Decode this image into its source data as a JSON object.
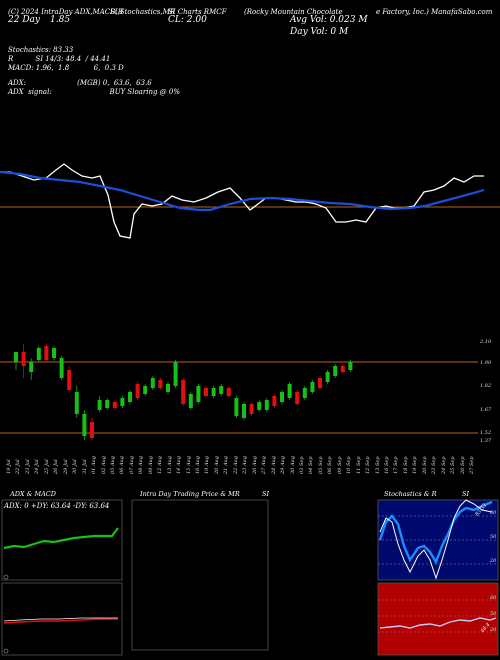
{
  "header": {
    "line1_left": "(C) 2024 IntraDay ADX,MACD,R",
    "line1_mid": "SI,Stochastics,MR",
    "line1_mid2": "SI Charts RMCF",
    "line1_right": "(Rocky Mountain Chocolate",
    "line1_right2": "e Factory, Inc.) ManafaSabo.com",
    "date_label": "22 Day",
    "close_prefix": "CL: 2.00",
    "avg_vol": "Avg Vol: 0.023 M",
    "day_vol": "Day Vol: 0  M",
    "change": "1.85"
  },
  "indicators": {
    "stoch": "Stochastics: 83.33",
    "rsi": "R          SI 14/3: 48.4  / 44.41",
    "macd": "MACD: 1.96,  1.8           6,  0.3 D",
    "adx": "ADX:                       (MGB) 0,  63.6,  63.6",
    "adx_signal": "ADX  signal:                          BUY Sloaring @ 0%"
  },
  "price_axis": {
    "labels": [
      "2.10",
      "1.90",
      "1.82",
      "1.67",
      "1.52",
      "1.37"
    ]
  },
  "dates": [
    "19 Jul",
    "22 Jul",
    "23 Jul",
    "24 Jul",
    "25 Jul",
    "26 Jul",
    "29 Jul",
    "30 Jul",
    "31 Jul",
    "01 Aug",
    "02 Aug",
    "05 Aug",
    "06 Aug",
    "07 Aug",
    "08 Aug",
    "09 Aug",
    "12 Aug",
    "13 Aug",
    "14 Aug",
    "15 Aug",
    "16 Aug",
    "19 Aug",
    "20 Aug",
    "21 Aug",
    "22 Aug",
    "23 Aug",
    "26 Aug",
    "27 Aug",
    "28 Aug",
    "29 Aug",
    "30 Aug",
    "03 Sep",
    "04 Sep",
    "05 Sep",
    "06 Sep",
    "09 Sep",
    "10 Sep",
    "11 Sep",
    "12 Sep",
    "13 Sep",
    "16 Sep",
    "17 Sep",
    "18 Sep",
    "19 Sep",
    "20 Sep",
    "23 Sep",
    "24 Sep",
    "25 Sep",
    "26 Sep",
    "27 Sep"
  ],
  "panels": {
    "adx_title": "ADX  & MACD",
    "adx_values": "ADX: 0   +DY: 63.64   -DY: 63.64",
    "intra_title": "Intra  Day Trading Price  & MR",
    "intra_title2": "SI",
    "stoch_title": "Stochastics & R",
    "stoch_title2": "SI",
    "stoch_badge": "83.33",
    "stoch_labels": [
      "80",
      "50",
      "20"
    ],
    "rsi_labels": [
      "80",
      "50",
      "20"
    ],
    "rsi_badge": "48.4"
  },
  "colors": {
    "up": "#16c016",
    "down": "#e01010",
    "ma_blue": "#1a4fd8",
    "orange_line": "#b5651d",
    "stoch_bg": "#000a6e",
    "rsi_bg": "#b00000"
  }
}
